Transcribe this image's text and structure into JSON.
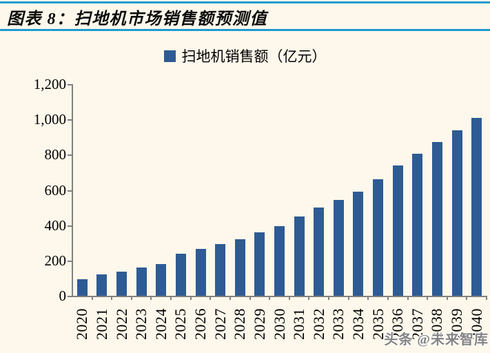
{
  "header": {
    "title": "图表 8：扫地机市场销售额预测值"
  },
  "legend": {
    "label": "扫地机销售额（亿元）"
  },
  "watermark": "头条 @未来智库",
  "colors": {
    "background": "#FDF8EB",
    "accent_rule": "#1B9AD3",
    "bar": "#2E5B94",
    "axis": "#808080",
    "text": "#000000"
  },
  "chart_data": {
    "type": "bar",
    "title": "图表 8：扫地机市场销售额预测值",
    "legend_label": "扫地机销售额（亿元）",
    "legend_position": "top",
    "grid": false,
    "xlabel": "",
    "ylabel": "",
    "ylim": [
      0,
      1200
    ],
    "ytick_interval": 200,
    "ytick_labels": [
      "0",
      "200",
      "400",
      "600",
      "800",
      "1,000",
      "1,200"
    ],
    "categories": [
      "2020",
      "2021",
      "2022",
      "2023",
      "2024",
      "2025",
      "2026",
      "2027",
      "2028",
      "2029",
      "2030",
      "2031",
      "2032",
      "2033",
      "2034",
      "2035",
      "2036",
      "2037",
      "2038",
      "2039",
      "2040"
    ],
    "values": [
      95,
      120,
      135,
      160,
      180,
      240,
      265,
      295,
      320,
      360,
      395,
      450,
      500,
      545,
      590,
      660,
      740,
      805,
      870,
      940,
      1010
    ]
  }
}
